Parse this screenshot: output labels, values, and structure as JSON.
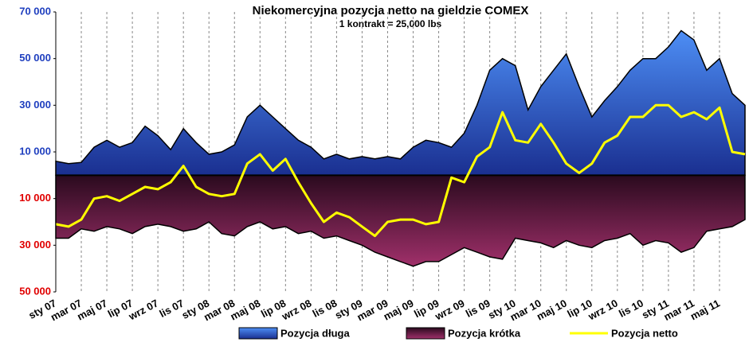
{
  "chart_data": {
    "type": "area",
    "title": "Niekomercyjna pozycja netto na gieldzie COMEX",
    "subtitle": "1 kontrakt = 25,000 lbs",
    "categories": [
      "sty 07",
      null,
      "mar 07",
      null,
      "maj 07",
      null,
      "lip 07",
      null,
      "wrz 07",
      null,
      "lis 07",
      null,
      "sty 08",
      null,
      "mar 08",
      null,
      "maj 08",
      null,
      "lip 08",
      null,
      "wrz 08",
      null,
      "lis 08",
      null,
      "sty 09",
      null,
      "mar 09",
      null,
      "maj 09",
      null,
      "lip 09",
      null,
      "wrz 09",
      null,
      "lis 09",
      null,
      "sty 10",
      null,
      "mar 10",
      null,
      "maj 10",
      null,
      "lip 10",
      null,
      "wrz 10",
      null,
      "lis 10",
      null,
      "sty 11",
      null,
      "mar 11",
      null,
      "maj 11",
      null,
      null
    ],
    "series": [
      {
        "name": "Pozycja długa",
        "color": "#2a55d6",
        "values": [
          6000,
          5000,
          5500,
          12000,
          15000,
          12000,
          14000,
          21000,
          17000,
          11000,
          20000,
          14000,
          9000,
          10000,
          13000,
          25000,
          30000,
          25000,
          20000,
          15000,
          12000,
          7000,
          9000,
          7000,
          8000,
          7000,
          8000,
          7000,
          12000,
          15000,
          14000,
          12000,
          18000,
          30000,
          45000,
          50000,
          47000,
          28000,
          38000,
          45000,
          52000,
          38000,
          25000,
          32000,
          38000,
          45000,
          50000,
          50000,
          55000,
          62000,
          58000,
          45000,
          50000,
          35000,
          30000
        ]
      },
      {
        "name": "Pozycja krótka",
        "color": "#7a2050",
        "values": [
          -27000,
          -27000,
          -23000,
          -24000,
          -22000,
          -23000,
          -25000,
          -22000,
          -21000,
          -22000,
          -24000,
          -23000,
          -20000,
          -25000,
          -26000,
          -22000,
          -20000,
          -23000,
          -22000,
          -25000,
          -24000,
          -27000,
          -26000,
          -28000,
          -30000,
          -33000,
          -35000,
          -37000,
          -39000,
          -37000,
          -37000,
          -34000,
          -31000,
          -33000,
          -35000,
          -36000,
          -27000,
          -28000,
          -29000,
          -31000,
          -28000,
          -30000,
          -31000,
          -28000,
          -27000,
          -25000,
          -30000,
          -28000,
          -29000,
          -33000,
          -31000,
          -24000,
          -23000,
          -22000,
          -19000
        ]
      },
      {
        "name": "Pozycja netto",
        "color": "#ffff00",
        "values": [
          -21000,
          -22000,
          -19000,
          -10000,
          -9000,
          -11000,
          -8000,
          -5000,
          -6000,
          -3000,
          4000,
          -5000,
          -8000,
          -9000,
          -8000,
          5000,
          9000,
          2000,
          7000,
          -3000,
          -12000,
          -20000,
          -16000,
          -18000,
          -22000,
          -26000,
          -20000,
          -19000,
          -19000,
          -21000,
          -20000,
          -1000,
          -3000,
          8000,
          12000,
          27000,
          15000,
          14000,
          22000,
          14000,
          5000,
          1000,
          5000,
          14000,
          17000,
          25000,
          25000,
          30000,
          30000,
          25000,
          27000,
          24000,
          29000,
          10000,
          9000
        ]
      }
    ],
    "ylim": [
      -50000,
      70000
    ],
    "yticks": [
      {
        "value": 70000,
        "label": "70 000"
      },
      {
        "value": 50000,
        "label": "50 000"
      },
      {
        "value": 30000,
        "label": "30 000"
      },
      {
        "value": 10000,
        "label": "10 000"
      },
      {
        "value": -10000,
        "label": "10 000"
      },
      {
        "value": -30000,
        "label": "30 000"
      },
      {
        "value": -50000,
        "label": "50 000"
      }
    ],
    "ytick_color_positive": "#1f3fbf",
    "ytick_color_negative": "#e00000",
    "grid": true,
    "legend": "bottom"
  }
}
